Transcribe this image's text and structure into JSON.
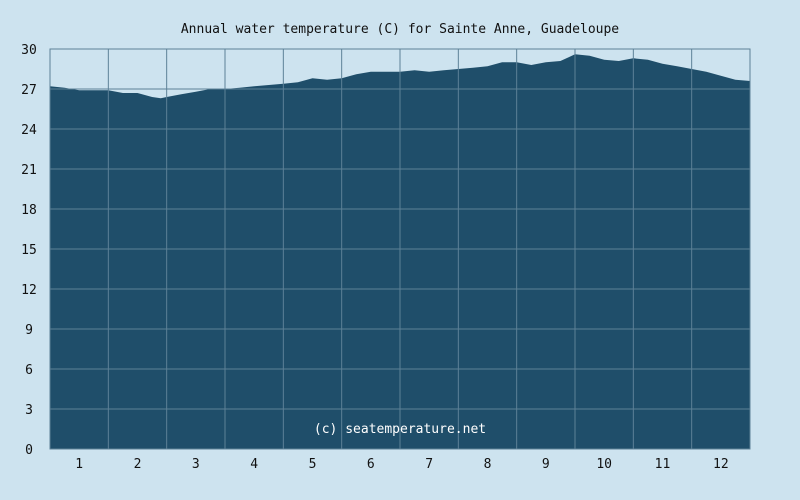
{
  "chart_data": {
    "type": "area",
    "title": "Annual water temperature (C) for Sainte Anne, Guadeloupe",
    "watermark": "(c) seatemperature.net",
    "xlabel": "",
    "ylabel": "",
    "x_ticks": [
      "1",
      "2",
      "3",
      "4",
      "5",
      "6",
      "7",
      "8",
      "9",
      "10",
      "11",
      "12"
    ],
    "y_ticks": [
      "0",
      "3",
      "6",
      "9",
      "12",
      "15",
      "18",
      "21",
      "24",
      "27",
      "30"
    ],
    "ylim": [
      0,
      30
    ],
    "xlim": [
      0.5,
      12.5
    ],
    "grid": true,
    "x": [
      0.5,
      0.75,
      1.0,
      1.25,
      1.5,
      1.75,
      2.0,
      2.25,
      2.4,
      2.5,
      2.75,
      3.0,
      3.25,
      3.5,
      3.75,
      4.0,
      4.25,
      4.5,
      4.75,
      5.0,
      5.25,
      5.5,
      5.75,
      6.0,
      6.25,
      6.5,
      6.75,
      7.0,
      7.25,
      7.5,
      7.75,
      8.0,
      8.25,
      8.5,
      8.75,
      9.0,
      9.25,
      9.4,
      9.5,
      9.75,
      10.0,
      10.25,
      10.5,
      10.75,
      11.0,
      11.25,
      11.5,
      11.75,
      12.0,
      12.25,
      12.5
    ],
    "series": [
      {
        "values": [
          27.2,
          27.1,
          26.9,
          26.9,
          26.9,
          26.7,
          26.7,
          26.4,
          26.3,
          26.4,
          26.6,
          26.8,
          27.0,
          27.0,
          27.1,
          27.2,
          27.3,
          27.4,
          27.5,
          27.8,
          27.7,
          27.8,
          28.1,
          28.3,
          28.3,
          28.3,
          28.4,
          28.3,
          28.4,
          28.5,
          28.6,
          28.7,
          29.0,
          29.0,
          28.8,
          29.0,
          29.1,
          29.4,
          29.6,
          29.5,
          29.2,
          29.1,
          29.3,
          29.2,
          28.9,
          28.7,
          28.5,
          28.3,
          28.0,
          27.7,
          27.6
        ]
      }
    ],
    "colors": {
      "background": "#cde3ef",
      "plot_fill": "#1f4e6a",
      "grid": "#5d8197",
      "text": "#111111",
      "watermark": "#ffffff"
    }
  }
}
